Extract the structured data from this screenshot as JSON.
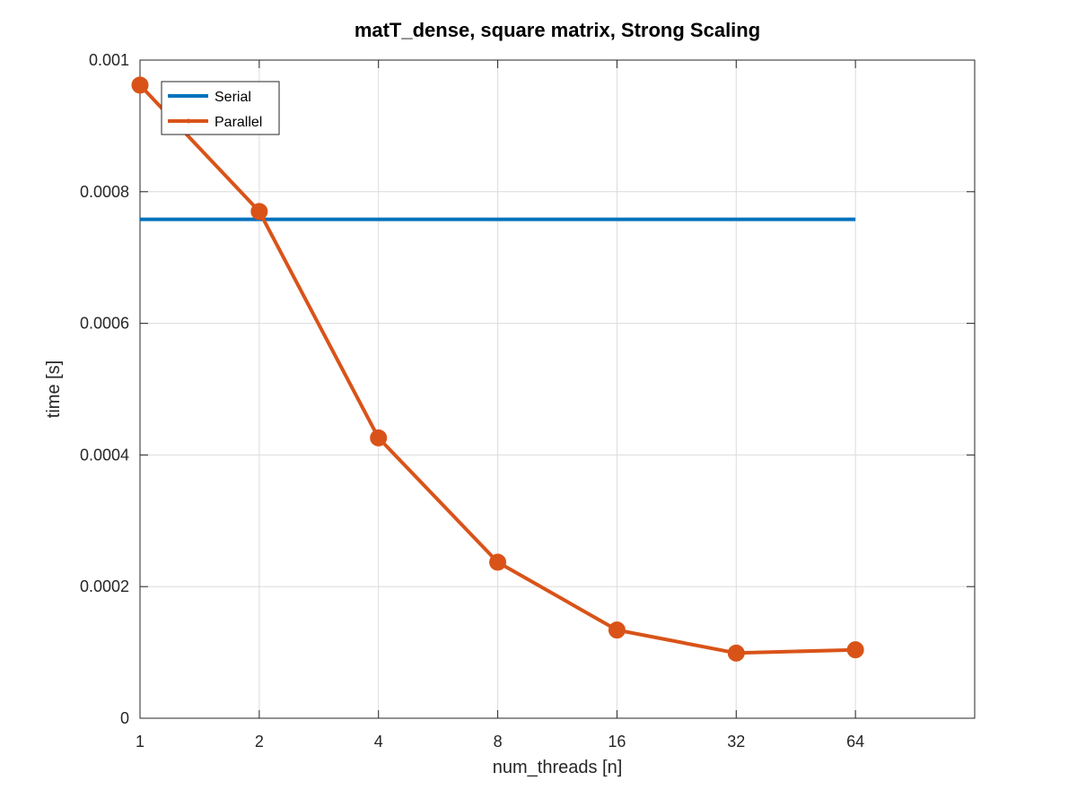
{
  "chart_data": {
    "type": "line",
    "title": "matT_dense, square matrix, Strong Scaling",
    "xlabel": "num_threads [n]",
    "ylabel": "time [s]",
    "x_scale": "log2",
    "x_ticks": [
      1,
      2,
      4,
      8,
      16,
      32,
      64
    ],
    "x_tick_labels": [
      "1",
      "2",
      "4",
      "8",
      "16",
      "32",
      "64"
    ],
    "xlim": [
      1,
      128
    ],
    "ylim": [
      0,
      0.001
    ],
    "y_ticks": [
      0,
      0.0002,
      0.0004,
      0.0006,
      0.0008,
      0.001
    ],
    "y_tick_labels": [
      "0",
      "0.0002",
      "0.0004",
      "0.0006",
      "0.0008",
      "0.001"
    ],
    "grid": true,
    "legend_position": "top-left",
    "series": [
      {
        "name": "Serial",
        "color": "#0072BD",
        "marker": "none",
        "x": [
          1,
          2,
          4,
          8,
          16,
          32,
          64
        ],
        "values": [
          0.000758,
          0.000758,
          0.000758,
          0.000758,
          0.000758,
          0.000758,
          0.000758
        ]
      },
      {
        "name": "Parallel",
        "color": "#D95319",
        "marker": "circle",
        "x": [
          1,
          2,
          4,
          8,
          16,
          32,
          64
        ],
        "values": [
          0.000962,
          0.00077,
          0.000426,
          0.000237,
          0.000134,
          9.9e-05,
          0.000104
        ]
      }
    ]
  }
}
